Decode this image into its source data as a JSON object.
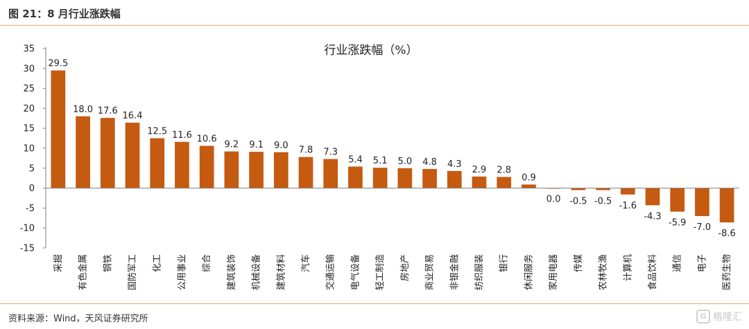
{
  "header": {
    "title": "图 21：8 月行业涨跌幅"
  },
  "footer": {
    "source": "资料来源：Wind，天风证券研究所",
    "watermark_text": "格隆汇",
    "watermark_icon": "G"
  },
  "colors": {
    "bar": "#c55a11",
    "rule": "#e8a46a",
    "axis": "#7f7f7f"
  },
  "chart_data": {
    "type": "bar",
    "title": "行业涨跌幅（%）",
    "xlabel": "",
    "ylabel": "",
    "ylim": [
      -15,
      35
    ],
    "yticks": [
      35,
      30,
      25,
      20,
      15,
      10,
      5,
      0,
      -5,
      -10,
      -15
    ],
    "grid": false,
    "categories": [
      "采掘",
      "有色金属",
      "钢铁",
      "国防军工",
      "化工",
      "公用事业",
      "综合",
      "建筑装饰",
      "机械设备",
      "建筑材料",
      "汽车",
      "交通运输",
      "电气设备",
      "轻工制造",
      "房地产",
      "商业贸易",
      "非银金融",
      "纺织服装",
      "银行",
      "休闲服务",
      "家用电器",
      "传媒",
      "农林牧渔",
      "计算机",
      "食品饮料",
      "通信",
      "电子",
      "医药生物"
    ],
    "values": [
      29.5,
      18.0,
      17.6,
      16.4,
      12.5,
      11.6,
      10.6,
      9.2,
      9.1,
      9.0,
      7.8,
      7.3,
      5.4,
      5.1,
      5.0,
      4.8,
      4.3,
      2.9,
      2.8,
      0.9,
      0.0,
      -0.5,
      -0.5,
      -1.6,
      -4.3,
      -5.9,
      -7.0,
      -8.6
    ],
    "value_labels": [
      "29.5",
      "18.0",
      "17.6",
      "16.4",
      "12.5",
      "11.6",
      "10.6",
      "9.2",
      "9.1",
      "9.0",
      "7.8",
      "7.3",
      "5.4",
      "5.1",
      "5.0",
      "4.8",
      "4.3",
      "2.9",
      "2.8",
      "0.9",
      "0.0",
      "-0.5",
      "-0.5",
      "-1.6",
      "-4.3",
      "-5.9",
      "-7.0",
      "-8.6"
    ]
  }
}
